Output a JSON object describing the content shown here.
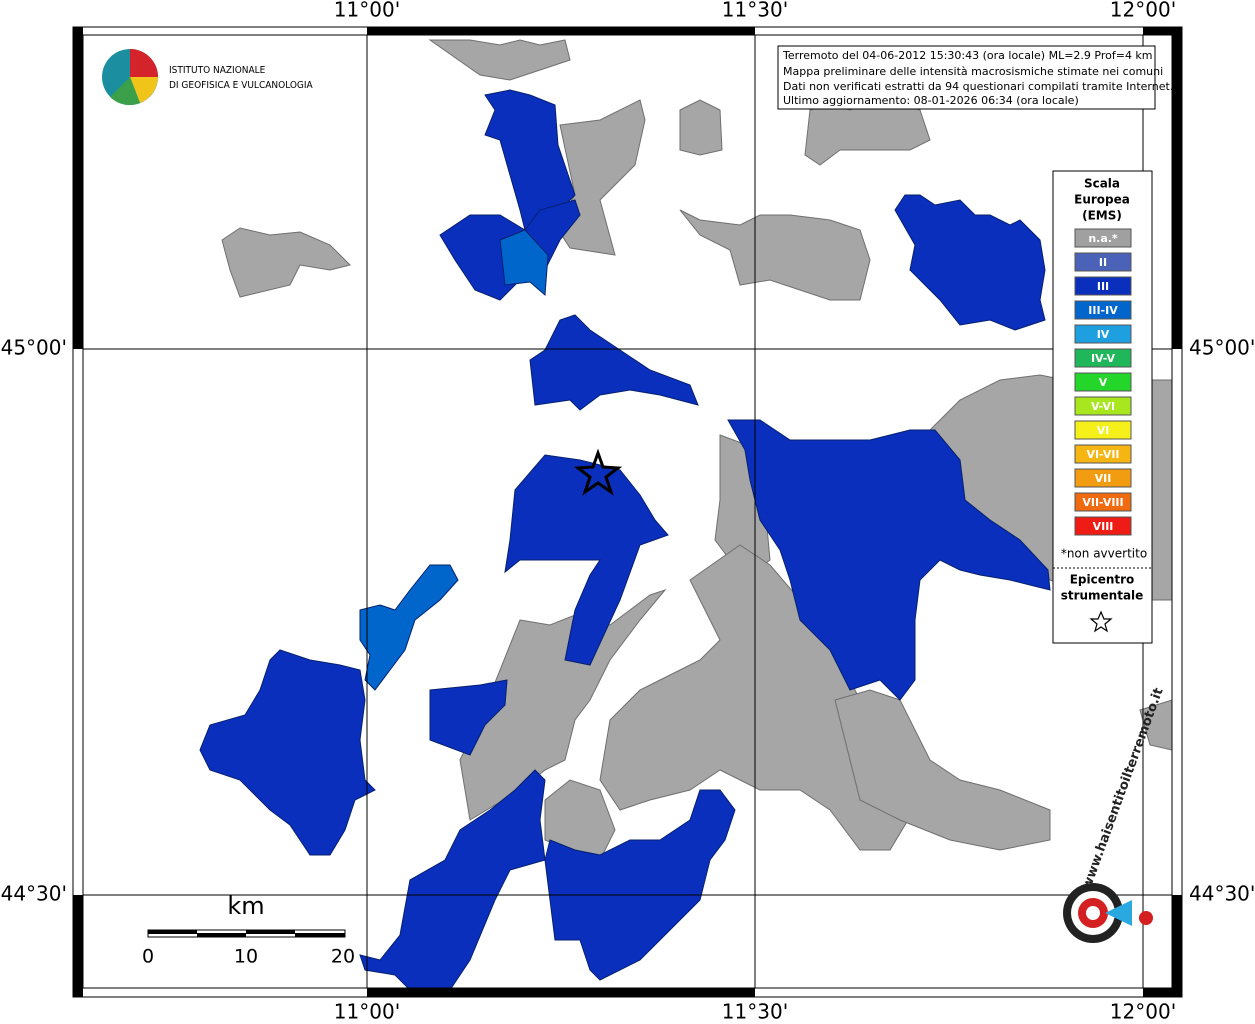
{
  "graticule": {
    "longitudes": [
      "11°00'",
      "11°30'",
      "12°00'"
    ],
    "latitudes": [
      "45°00'",
      "44°30'"
    ]
  },
  "info": [
    "Terremoto del 04-06-2012 15:30:43 (ora locale) ML=2.9 Prof=4 km",
    "Mappa preliminare delle intensità macrosismiche stimate nei comuni",
    "Dati non verificati estratti da 94 questionari compilati tramite Internet.",
    "Ultimo aggiornamento: 08-01-2026 06:34 (ora locale)"
  ],
  "legend": {
    "title": [
      "Scala",
      "Europea",
      "(EMS)"
    ],
    "classes": [
      {
        "label": "n.a.*",
        "color": "#a0a0a0"
      },
      {
        "label": "II",
        "color": "#4a63b8"
      },
      {
        "label": "III",
        "color": "#0a2fbd"
      },
      {
        "label": "III-IV",
        "color": "#0066cc"
      },
      {
        "label": "IV",
        "color": "#1e9fe0"
      },
      {
        "label": "IV-V",
        "color": "#1fb75a"
      },
      {
        "label": "V",
        "color": "#24d52a"
      },
      {
        "label": "V-VI",
        "color": "#a8e61d"
      },
      {
        "label": "VI",
        "color": "#f5ef1a"
      },
      {
        "label": "VI-VII",
        "color": "#f5b512"
      },
      {
        "label": "VII",
        "color": "#f29c12"
      },
      {
        "label": "VII-VIII",
        "color": "#f06a10"
      },
      {
        "label": "VIII",
        "color": "#ee1c14"
      }
    ],
    "note": "*non avvertito",
    "epicenter": [
      "Epicentro",
      "strumentale"
    ]
  },
  "scale_bar": {
    "unit": "km",
    "ticks": [
      "0",
      "10",
      "20"
    ]
  },
  "logos": {
    "ingv": [
      "ISTITUTO NAZIONALE",
      "DI GEOFISICA E VULCANOLOGIA"
    ],
    "hsit": "www.haisentitoilterremoto.it"
  }
}
